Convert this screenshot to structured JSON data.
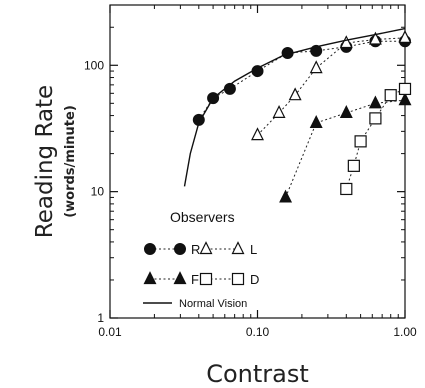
{
  "chart_data": {
    "type": "line",
    "xlabel": "Contrast",
    "ylabel": "Reading Rate",
    "ylabel_sub": "(words/minute)",
    "xscale": "log",
    "yscale": "log",
    "xlim": [
      0.01,
      1.0
    ],
    "ylim": [
      1,
      300
    ],
    "x_ticks": [
      {
        "value": 0.01,
        "label": "0.01"
      },
      {
        "value": 0.1,
        "label": "0.10"
      },
      {
        "value": 1.0,
        "label": "1.00"
      }
    ],
    "y_ticks": [
      {
        "value": 1,
        "label": "1"
      },
      {
        "value": 10,
        "label": "10"
      },
      {
        "value": 100,
        "label": "100"
      }
    ],
    "grid": false,
    "legend": {
      "title": "Observers",
      "placement": "bottom-left",
      "normal_label": "Normal Vision"
    },
    "series": [
      {
        "name": "R",
        "marker": "circle-filled",
        "x": [
          0.04,
          0.05,
          0.065,
          0.1,
          0.16,
          0.25,
          0.4,
          0.63,
          1.0
        ],
        "y": [
          37,
          55,
          65,
          90,
          125,
          130,
          140,
          155,
          155
        ]
      },
      {
        "name": "L",
        "marker": "triangle-open",
        "x": [
          0.1,
          0.14,
          0.18,
          0.25,
          0.4,
          0.63,
          1.0
        ],
        "y": [
          28,
          42,
          58,
          95,
          150,
          160,
          165
        ]
      },
      {
        "name": "F",
        "marker": "triangle-filled",
        "x": [
          0.155,
          0.25,
          0.4,
          0.63,
          1.0
        ],
        "y": [
          9,
          35,
          42,
          50,
          53
        ]
      },
      {
        "name": "D",
        "marker": "square-open",
        "x": [
          0.4,
          0.45,
          0.5,
          0.63,
          0.8,
          1.0
        ],
        "y": [
          10.5,
          16,
          25,
          38,
          58,
          65
        ]
      },
      {
        "name": "Normal Vision",
        "marker": "none",
        "x": [
          0.032,
          0.035,
          0.04,
          0.05,
          0.07,
          0.1,
          0.15,
          0.25,
          0.4,
          0.63,
          1.0
        ],
        "y": [
          11,
          20,
          35,
          55,
          75,
          95,
          120,
          140,
          158,
          175,
          195
        ]
      }
    ]
  }
}
